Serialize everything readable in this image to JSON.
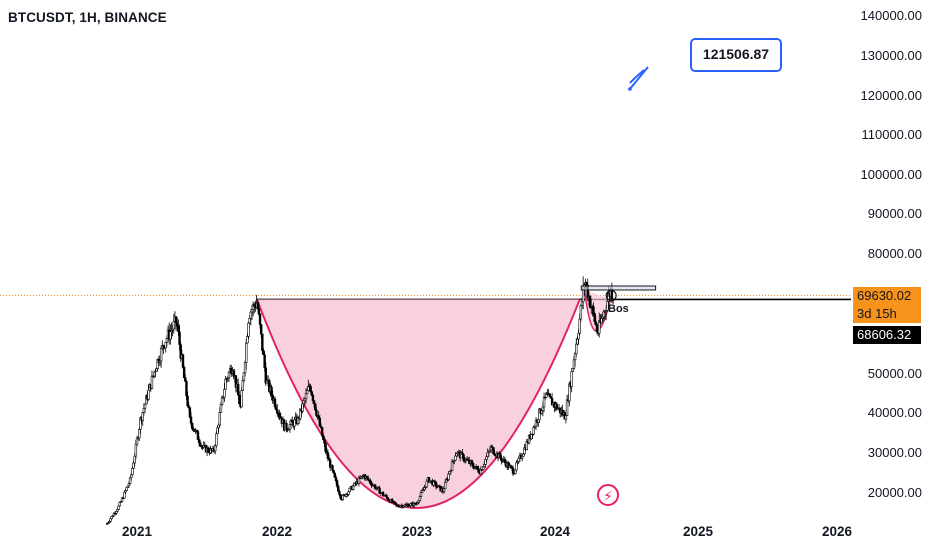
{
  "header": {
    "symbol_title": "BTCUSDT, 1H, BINANCE"
  },
  "price_axis": {
    "labels": [
      "140000.00",
      "130000.00",
      "120000.00",
      "110000.00",
      "100000.00",
      "90000.00",
      "80000.00",
      "50000.00",
      "40000.00",
      "30000.00",
      "20000.00"
    ]
  },
  "time_axis": {
    "labels": [
      "2021",
      "2022",
      "2023",
      "2024",
      "2025",
      "2026"
    ]
  },
  "tags": {
    "last_price": "69630.02",
    "countdown": "3d 15h",
    "level_price": "68606.32"
  },
  "annotations": {
    "target_callout": "121506.87",
    "bos_label": "Bos"
  },
  "colors": {
    "candle": "#000000",
    "cup_fill": "#f8c8d8",
    "cup_stroke": "#e0245e",
    "accent_blue": "#2962ff",
    "price_tag": "#f7931a"
  },
  "icons": {
    "flash": "lightning-bolt-icon"
  },
  "chart_data": {
    "type": "candlestick",
    "symbol": "BTCUSDT",
    "interval": "1H",
    "exchange": "BINANCE",
    "ylim": [
      16000,
      140000
    ],
    "xlim": [
      "2020-10-15",
      "2026-06-01"
    ],
    "y_ticks": [
      20000,
      30000,
      40000,
      50000,
      80000,
      90000,
      100000,
      110000,
      120000,
      130000,
      140000
    ],
    "x_ticks": [
      "2021",
      "2022",
      "2023",
      "2024",
      "2025",
      "2026"
    ],
    "close_path": [
      [
        "2020-10-15",
        11500
      ],
      [
        "2020-11-15",
        16000
      ],
      [
        "2020-12-15",
        23000
      ],
      [
        "2021-01-10",
        38000
      ],
      [
        "2021-02-20",
        52000
      ],
      [
        "2021-03-15",
        58000
      ],
      [
        "2021-04-14",
        63000
      ],
      [
        "2021-05-19",
        38000
      ],
      [
        "2021-06-22",
        31000
      ],
      [
        "2021-07-20",
        30000
      ],
      [
        "2021-08-20",
        48000
      ],
      [
        "2021-09-07",
        52000
      ],
      [
        "2021-09-28",
        41000
      ],
      [
        "2021-10-20",
        65000
      ],
      [
        "2021-11-10",
        68000
      ],
      [
        "2021-12-04",
        48000
      ],
      [
        "2022-01-22",
        36000
      ],
      [
        "2022-02-25",
        38000
      ],
      [
        "2022-03-28",
        47000
      ],
      [
        "2022-05-09",
        30000
      ],
      [
        "2022-06-18",
        18000
      ],
      [
        "2022-08-15",
        24000
      ],
      [
        "2022-09-30",
        19500
      ],
      [
        "2022-11-09",
        16000
      ],
      [
        "2022-12-30",
        16500
      ],
      [
        "2023-01-31",
        23000
      ],
      [
        "2023-03-10",
        20000
      ],
      [
        "2023-04-14",
        30000
      ],
      [
        "2023-06-15",
        25000
      ],
      [
        "2023-07-13",
        31000
      ],
      [
        "2023-09-11",
        25000
      ],
      [
        "2023-10-24",
        34000
      ],
      [
        "2023-12-05",
        44000
      ],
      [
        "2024-01-23",
        39000
      ],
      [
        "2024-02-28",
        62000
      ],
      [
        "2024-03-14",
        73700
      ],
      [
        "2024-04-17",
        60000
      ],
      [
        "2024-05-20",
        71000
      ],
      [
        "2024-05-27",
        69630
      ]
    ],
    "horizontal_levels": [
      {
        "price": 68606.32,
        "from": "2021-11-10",
        "to": "2026-06-01"
      },
      {
        "price": 69630.02,
        "from": "2020-10-15",
        "to": "2026-06-01",
        "style": "dotted"
      }
    ],
    "resistance_zone": {
      "low": 71000,
      "high": 72000,
      "from": "2024-03-05",
      "to": "2024-09-15"
    },
    "cup": {
      "left": [
        "2021-11-10",
        68606.32
      ],
      "bottom": [
        "2023-01-01",
        15500
      ],
      "right": [
        "2024-03-01",
        68606.32
      ]
    },
    "handle": {
      "left": [
        "2024-03-14",
        71000
      ],
      "bottom": [
        "2024-04-17",
        59000
      ],
      "right": [
        "2024-05-20",
        68606.32
      ]
    },
    "target": {
      "price": 121506.87,
      "date": "2024-07-10"
    },
    "last_price": 69630.02,
    "countdown": "3d 15h"
  }
}
